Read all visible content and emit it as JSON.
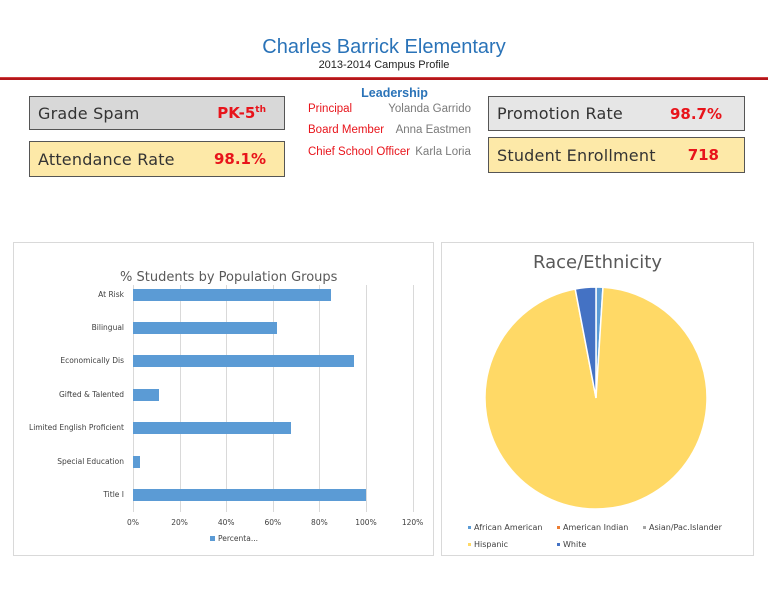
{
  "header": {
    "title": "Charles Barrick Elementary",
    "subtitle": "2013-2014 Campus Profile"
  },
  "stats": {
    "grade_span": {
      "label": "Grade Spam",
      "value": "PK-5",
      "value_sup": "th"
    },
    "attendance_rate": {
      "label": "Attendance Rate",
      "value": "98.1%"
    },
    "promotion_rate": {
      "label": "Promotion Rate",
      "value": "98.7%"
    },
    "student_enrollment": {
      "label": "Student Enrollment",
      "value": "718"
    }
  },
  "leadership": {
    "title": "Leadership",
    "members": [
      {
        "role": "Principal",
        "name": "Yolanda Garrido"
      },
      {
        "role": "Board Member",
        "name": "Anna Eastmen"
      },
      {
        "role": "Chief School Officer",
        "name": "Karla Loria"
      }
    ]
  },
  "colors": {
    "title_blue": "#2a73b8",
    "accent_red": "#e8141b",
    "rule_red": "#b3161a",
    "bar_blue": "#5b9bd5",
    "hispanic_yellow": "#ffd966",
    "white_blue": "#4472c4",
    "african_american_blue": "#5b9bd5",
    "american_indian_orange": "#ed7d31",
    "asian_grey": "#a5a5a5"
  },
  "chart_data": [
    {
      "type": "bar",
      "orientation": "horizontal",
      "title": "% Students by Population Groups",
      "categories": [
        "At Risk",
        "Bilingual",
        "Economically Dis",
        "Gifted & Talented",
        "Limited English Proficient",
        "Special Education",
        "Title I"
      ],
      "series": [
        {
          "name": "Percenta...",
          "values": [
            85,
            62,
            95,
            11,
            68,
            3,
            100
          ]
        }
      ],
      "xlabel": "",
      "ylabel": "",
      "xlim": [
        0,
        120
      ],
      "x_ticks": [
        "0%",
        "20%",
        "40%",
        "60%",
        "80%",
        "100%",
        "120%"
      ],
      "grid": true,
      "legend_position": "bottom"
    },
    {
      "type": "pie",
      "title": "Race/Ethnicity",
      "categories": [
        "African American",
        "American Indian",
        "Asian/Pac.Islander",
        "Hispanic",
        "White"
      ],
      "values": [
        1,
        0,
        0,
        96,
        3
      ],
      "legend": [
        "African American",
        "American Indian",
        "Asian/Pac.Islander",
        "Hispanic",
        "White"
      ],
      "legend_position": "bottom"
    }
  ]
}
